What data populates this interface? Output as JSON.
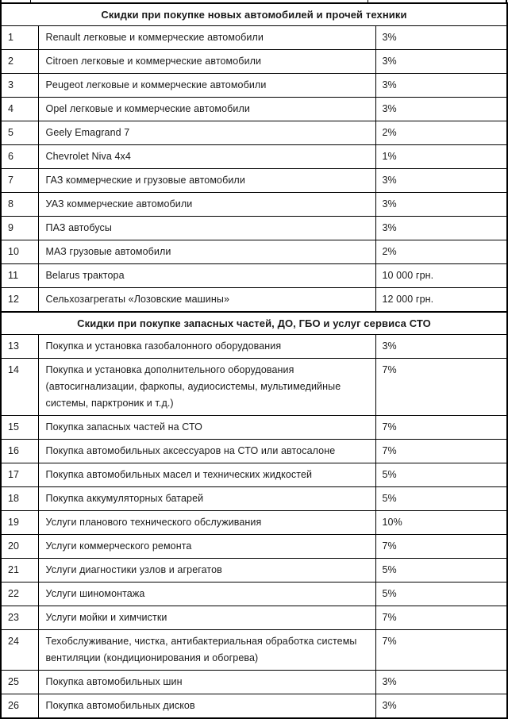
{
  "colors": {
    "background": "#ffffff",
    "text": "#1a1a1a",
    "border": "#000000"
  },
  "table": {
    "sections": [
      {
        "header": "Скидки при покупке новых автомобилей и прочей техники",
        "rows": [
          {
            "num": "1",
            "item": "Renault легковые и коммерческие автомобили",
            "value": "3%"
          },
          {
            "num": "2",
            "item": "Citroen легковые и коммерческие автомобили",
            "value": "3%"
          },
          {
            "num": "3",
            "item": "Peugeot легковые и коммерческие автомобили",
            "value": "3%"
          },
          {
            "num": "4",
            "item": "Opel легковые и коммерческие автомобили",
            "value": "3%"
          },
          {
            "num": "5",
            "item": "Geely Emagrand 7",
            "value": "2%"
          },
          {
            "num": "6",
            "item": "Chevrolet Niva 4x4",
            "value": "1%"
          },
          {
            "num": "7",
            "item": "ГАЗ коммерческие и грузовые автомобили",
            "value": "3%"
          },
          {
            "num": "8",
            "item": "УАЗ коммерческие автомобили",
            "value": "3%"
          },
          {
            "num": "9",
            "item": "ПАЗ автобусы",
            "value": "3%"
          },
          {
            "num": "10",
            "item": "МАЗ грузовые автомобили",
            "value": "2%"
          },
          {
            "num": "11",
            "item": "Belarus трактора",
            "value": "10 000 грн."
          },
          {
            "num": "12",
            "item": "Сельхозагрегаты «Лозовские машины»",
            "value": "12 000 грн."
          }
        ]
      },
      {
        "header": "Скидки при покупке запасных частей, ДО, ГБО и услуг сервиса СТО",
        "rows": [
          {
            "num": "13",
            "item": "Покупка и установка газобалонного оборудования",
            "value": "3%"
          },
          {
            "num": "14",
            "item": "Покупка и установка дополнительного оборудования (автосигнализации, фаркопы, аудиосистемы, мультимедийные системы, парктроник и т.д.)",
            "value": "7%"
          },
          {
            "num": "15",
            "item": "Покупка запасных частей на СТО",
            "value": "7%"
          },
          {
            "num": "16",
            "item": "Покупка автомобильных аксессуаров на СТО или автосалоне",
            "value": "7%"
          },
          {
            "num": "17",
            "item": "Покупка автомобильных масел и технических жидкостей",
            "value": "5%"
          },
          {
            "num": "18",
            "item": "Покупка аккумуляторных батарей",
            "value": "5%"
          },
          {
            "num": "19",
            "item": "Услуги планового технического обслуживания",
            "value": "10%"
          },
          {
            "num": "20",
            "item": "Услуги коммерческого ремонта",
            "value": "7%"
          },
          {
            "num": "21",
            "item": "Услуги диагностики узлов и агрегатов",
            "value": "5%"
          },
          {
            "num": "22",
            "item": "Услуги шиномонтажа",
            "value": "5%"
          },
          {
            "num": "23",
            "item": "Услуги мойки и химчистки",
            "value": "7%"
          },
          {
            "num": "24",
            "item": "Техобслуживание, чистка, антибактериальная обработка системы вентиляции (кондиционирования и обогрева)",
            "value": "7%"
          },
          {
            "num": "25",
            "item": "Покупка автомобильных шин",
            "value": "3%"
          },
          {
            "num": "26",
            "item": "Покупка автомобильных дисков",
            "value": "3%"
          }
        ]
      }
    ]
  }
}
